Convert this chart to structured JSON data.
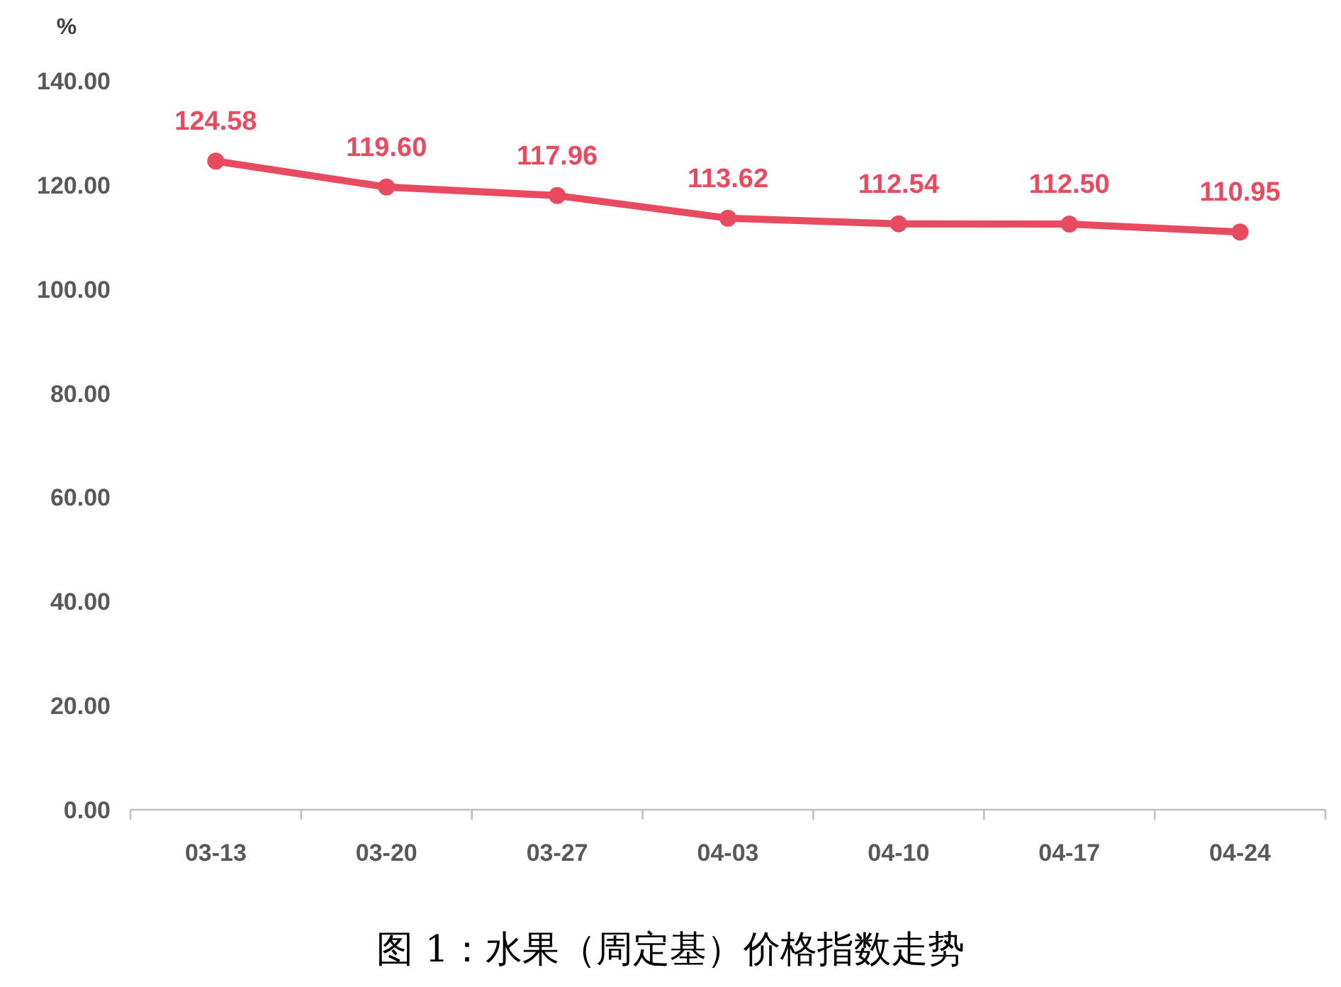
{
  "chart_data": {
    "type": "line",
    "title": "图 1：水果（周定基）价格指数走势",
    "ylabel": "%",
    "categories": [
      "03-13",
      "03-20",
      "03-27",
      "04-03",
      "04-10",
      "04-17",
      "04-24"
    ],
    "series": [
      {
        "color": "#e84a5f",
        "values": [
          124.58,
          119.6,
          117.96,
          113.62,
          112.54,
          112.5,
          110.95
        ],
        "value_labels": [
          "124.58",
          "119.60",
          "117.96",
          "113.62",
          "112.54",
          "112.50",
          "110.95"
        ]
      }
    ],
    "ylim": [
      0,
      140
    ],
    "yticks": [
      {
        "value": 0,
        "label": "0.00"
      },
      {
        "value": 20,
        "label": "20.00"
      },
      {
        "value": 40,
        "label": "40.00"
      },
      {
        "value": 60,
        "label": "60.00"
      },
      {
        "value": 80,
        "label": "80.00"
      },
      {
        "value": 100,
        "label": "100.00"
      },
      {
        "value": 120,
        "label": "120.00"
      },
      {
        "value": 140,
        "label": "140.00"
      }
    ],
    "marker": "circle",
    "line_style": "solid"
  }
}
